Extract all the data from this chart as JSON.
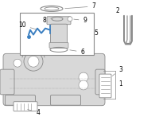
{
  "bg_color": "#ffffff",
  "line_color": "#888888",
  "tank_fill": "#d8d8d8",
  "white": "#ffffff",
  "blue": "#3a7fc1",
  "figsize": [
    2.0,
    1.47
  ],
  "dpi": 100
}
